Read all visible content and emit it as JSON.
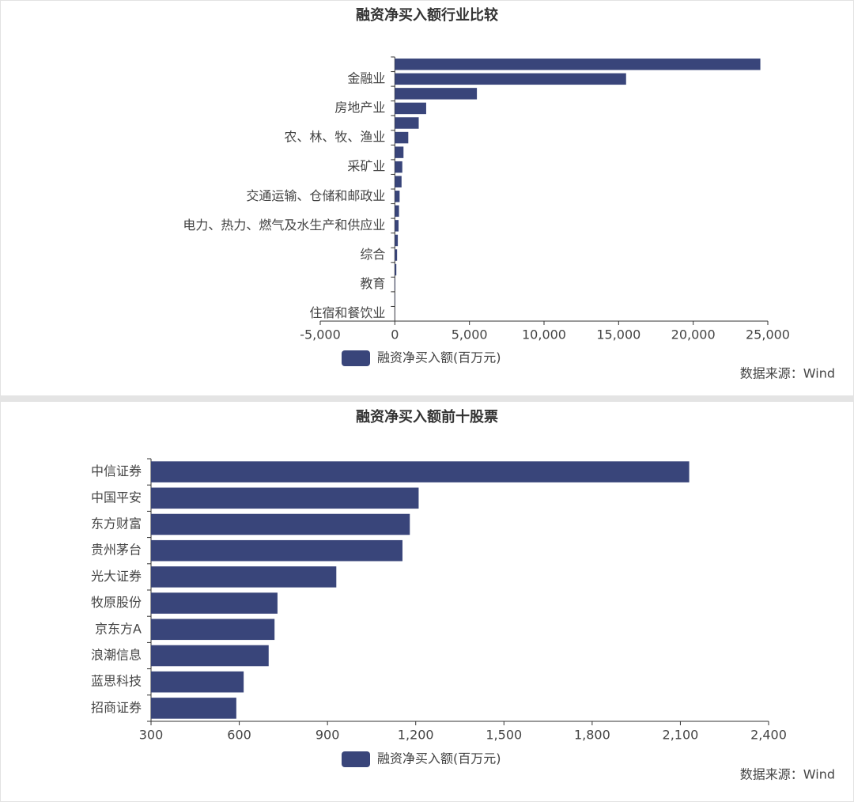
{
  "chart_data": [
    {
      "type": "bar",
      "orientation": "horizontal",
      "title": "融资净买入额行业比较",
      "categories": [
        null,
        "金融业",
        null,
        "房地产业",
        null,
        "农、林、牧、渔业",
        null,
        "采矿业",
        null,
        "交通运输、仓储和邮政业",
        null,
        "电力、热力、燃气及水生产和供应业",
        null,
        "综合",
        null,
        "教育",
        null,
        "住宿和餐饮业"
      ],
      "series": [
        {
          "name": "融资净买入额(百万元)",
          "color": "#39457a",
          "values": [
            24500,
            15500,
            5500,
            2100,
            1600,
            900,
            580,
            500,
            450,
            320,
            280,
            250,
            200,
            150,
            100,
            30,
            20,
            10
          ]
        }
      ],
      "xlim": [
        -5000,
        25000
      ],
      "xticks": [
        {
          "value": -5000,
          "label": "-5,000"
        },
        0,
        {
          "value": 5000,
          "label": "5,000"
        },
        {
          "value": 10000,
          "label": "10,000"
        },
        {
          "value": 15000,
          "label": "15,000"
        },
        {
          "value": 20000,
          "label": "20,000"
        },
        {
          "value": 25000,
          "label": "25,000"
        }
      ],
      "source": "数据来源：Wind"
    },
    {
      "type": "bar",
      "orientation": "horizontal",
      "title": "融资净买入额前十股票",
      "categories": [
        "中信证券",
        "中国平安",
        "东方财富",
        "贵州茅台",
        "光大证券",
        "牧原股份",
        "京东方A",
        "浪潮信息",
        "蓝思科技",
        "招商证券"
      ],
      "series": [
        {
          "name": "融资净买入额(百万元)",
          "color": "#39457a",
          "values": [
            2130,
            1210,
            1180,
            1155,
            930,
            730,
            720,
            700,
            615,
            590
          ]
        }
      ],
      "xlim": [
        300,
        2400
      ],
      "xticks": [
        300,
        600,
        900,
        {
          "value": 1200,
          "label": "1,200"
        },
        {
          "value": 1500,
          "label": "1,500"
        },
        {
          "value": 1800,
          "label": "1,800"
        },
        {
          "value": 2100,
          "label": "2,100"
        },
        {
          "value": 2400,
          "label": "2,400"
        }
      ],
      "source": "数据来源：Wind"
    }
  ]
}
